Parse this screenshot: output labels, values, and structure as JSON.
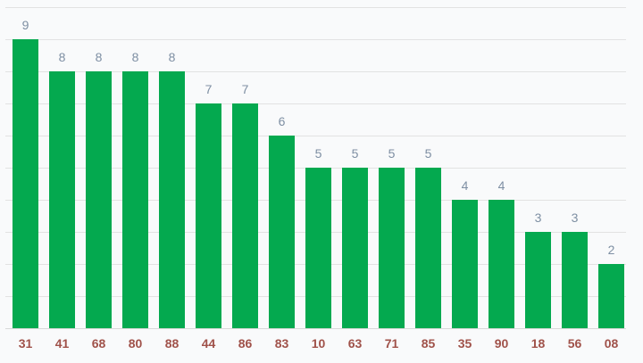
{
  "chart_data": {
    "type": "bar",
    "title": "",
    "xlabel": "",
    "ylabel": "",
    "categories": [
      "31",
      "41",
      "68",
      "80",
      "88",
      "44",
      "86",
      "83",
      "10",
      "63",
      "71",
      "85",
      "35",
      "90",
      "18",
      "56",
      "08"
    ],
    "values": [
      9,
      8,
      8,
      8,
      8,
      7,
      7,
      6,
      5,
      5,
      5,
      5,
      4,
      4,
      3,
      3,
      2
    ],
    "ylim": [
      0,
      10
    ],
    "gridline_step": 1,
    "grid": true,
    "legend": "none",
    "y_tick_labels_shown": false,
    "value_labels_shown": true,
    "colors": {
      "bar": "#04a94f",
      "value_label": "#7e8fa3",
      "category_label": "#a0524a",
      "background": "#f9fafb",
      "gridline": "#e2e2e2",
      "axis_line": "#d8d8d8"
    }
  }
}
